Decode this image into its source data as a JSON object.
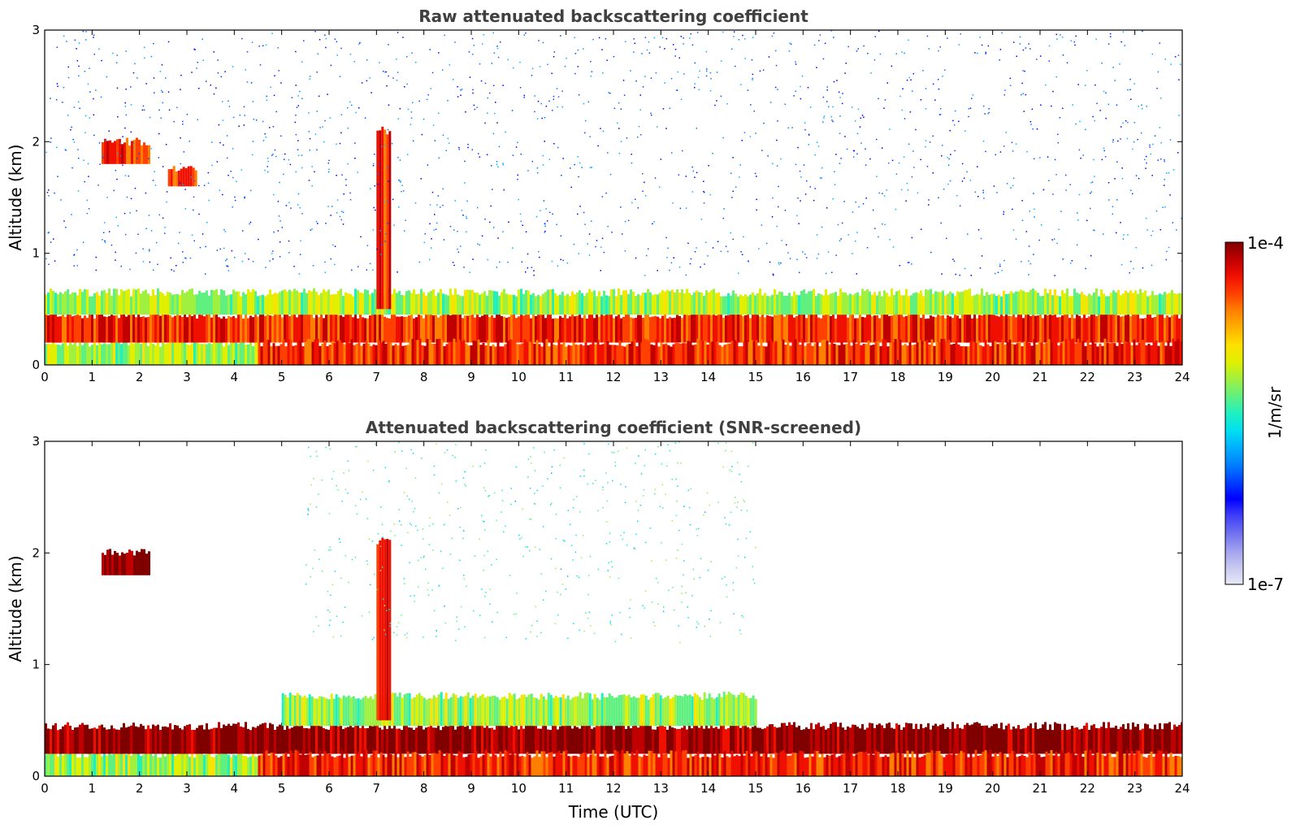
{
  "chart_data": [
    {
      "type": "heatmap",
      "title": "Raw attenuated backscattering coefficient",
      "xlabel": "",
      "ylabel": "Altitude (km)",
      "xlim": [
        0,
        24
      ],
      "ylim": [
        0,
        3
      ],
      "x_ticks": [
        "0",
        "1",
        "2",
        "3",
        "4",
        "5",
        "6",
        "7",
        "8",
        "9",
        "10",
        "11",
        "12",
        "13",
        "14",
        "15",
        "16",
        "17",
        "18",
        "19",
        "20",
        "21",
        "22",
        "23",
        "24"
      ],
      "y_ticks": [
        "0",
        "1",
        "2",
        "3"
      ],
      "features": [
        {
          "time_range": [
            0,
            4.5
          ],
          "altitude_range": [
            0,
            0.2
          ],
          "level": "moderate"
        },
        {
          "time_range": [
            0,
            24
          ],
          "altitude_range": [
            0.2,
            0.45
          ],
          "level": "high"
        },
        {
          "time_range": [
            4.5,
            24
          ],
          "altitude_range": [
            0,
            0.2
          ],
          "level": "high"
        },
        {
          "time_range": [
            0,
            24
          ],
          "altitude_range": [
            0.45,
            0.65
          ],
          "level": "moderate"
        },
        {
          "time_range": [
            1.2,
            2.2
          ],
          "altitude_range": [
            1.8,
            2.0
          ],
          "level": "high"
        },
        {
          "time_range": [
            2.6,
            3.2
          ],
          "altitude_range": [
            1.6,
            1.75
          ],
          "level": "high"
        },
        {
          "time_range": [
            7.0,
            7.3
          ],
          "altitude_range": [
            0.5,
            2.1
          ],
          "level": "high"
        },
        {
          "time_range": [
            0,
            24
          ],
          "altitude_range": [
            0.8,
            3.0
          ],
          "level": "low-noise"
        }
      ]
    },
    {
      "type": "heatmap",
      "title": "Attenuated backscattering coefficient (SNR-screened)",
      "xlabel": "Time (UTC)",
      "ylabel": "Altitude (km)",
      "xlim": [
        0,
        24
      ],
      "ylim": [
        0,
        3
      ],
      "x_ticks": [
        "0",
        "1",
        "2",
        "3",
        "4",
        "5",
        "6",
        "7",
        "8",
        "9",
        "10",
        "11",
        "12",
        "13",
        "14",
        "15",
        "16",
        "17",
        "18",
        "19",
        "20",
        "21",
        "22",
        "23",
        "24"
      ],
      "y_ticks": [
        "0",
        "1",
        "2",
        "3"
      ],
      "features": [
        {
          "time_range": [
            0,
            4.5
          ],
          "altitude_range": [
            0,
            0.2
          ],
          "level": "moderate"
        },
        {
          "time_range": [
            0,
            24
          ],
          "altitude_range": [
            0.2,
            0.45
          ],
          "level": "very-high"
        },
        {
          "time_range": [
            4.5,
            24
          ],
          "altitude_range": [
            0,
            0.2
          ],
          "level": "high"
        },
        {
          "time_range": [
            5,
            15
          ],
          "altitude_range": [
            0.45,
            0.72
          ],
          "level": "moderate"
        },
        {
          "time_range": [
            1.2,
            2.2
          ],
          "altitude_range": [
            1.8,
            2.0
          ],
          "level": "very-high"
        },
        {
          "time_range": [
            7.0,
            7.3
          ],
          "altitude_range": [
            0.5,
            2.1
          ],
          "level": "high"
        },
        {
          "time_range": [
            5.5,
            15
          ],
          "altitude_range": [
            1.2,
            3.0
          ],
          "level": "low-noise"
        }
      ]
    }
  ],
  "colorbar": {
    "label": "1/m/sr",
    "max_label": "1e-4",
    "min_label": "1e-7",
    "colors": [
      "#e8e8f8",
      "#c8c8f0",
      "#a0a0f0",
      "#7070f0",
      "#4040f8",
      "#0000ff",
      "#0040ff",
      "#0080ff",
      "#00b0ff",
      "#00e0f0",
      "#20f0c0",
      "#60f080",
      "#a0f040",
      "#e0f000",
      "#ffe000",
      "#ffb000",
      "#ff8000",
      "#ff4000",
      "#f01000",
      "#c00000",
      "#800000"
    ]
  }
}
